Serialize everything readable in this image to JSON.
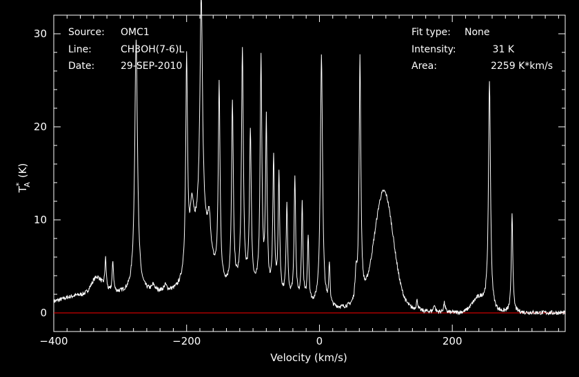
{
  "chart_data": {
    "type": "line",
    "xlabel": "Velocity (km/s)",
    "ylabel_main": "T",
    "ylabel_sub": "A",
    "ylabel_sup": "*",
    "ylabel_unit": "(K)",
    "xlim": [
      -400,
      370
    ],
    "ylim": [
      -2,
      32
    ],
    "x_ticks": [
      -400,
      -200,
      0,
      200
    ],
    "y_ticks": [
      0,
      10,
      20,
      30
    ],
    "baseline_y": 0,
    "baseline_color": "#ff0000",
    "line_color": "#ffffff",
    "grid": false,
    "info_left": [
      {
        "label": "Source:",
        "value": "OMC1"
      },
      {
        "label": "Line:",
        "value": "CH3OH(7-6)L"
      },
      {
        "label": "Date:",
        "value": "29-SEP-2010"
      }
    ],
    "info_right": [
      {
        "label": "Fit type:",
        "value": "None"
      },
      {
        "label": "Intensity:",
        "value": "31 K"
      },
      {
        "label": "Area:",
        "value": "2259 K*km/s"
      }
    ],
    "series": [
      {
        "broad": [
          [
            -335,
            1.8,
            8
          ],
          [
            -295,
            2.0,
            100
          ],
          [
            -180,
            5.5,
            14
          ],
          [
            -120,
            2.0,
            70
          ],
          [
            97,
            12.0,
            14
          ],
          [
            92,
            1.0,
            35
          ],
          [
            240,
            1.5,
            10
          ],
          [
            -365,
            0.3,
            20
          ]
        ],
        "peaks": [
          [
            -322,
            3.3,
            1.3
          ],
          [
            -311,
            3.3,
            1.3
          ],
          [
            -276,
            27.2,
            2.5
          ],
          [
            -250,
            0.6,
            2.5
          ],
          [
            -232,
            0.6,
            2.5
          ],
          [
            -200,
            22.5,
            1.6
          ],
          [
            -192,
            5.0,
            3.5
          ],
          [
            -178,
            25.5,
            2.4
          ],
          [
            -166,
            4.0,
            3.0
          ],
          [
            -151,
            21.0,
            1.6
          ],
          [
            -131,
            19.6,
            1.6
          ],
          [
            -116,
            25.3,
            1.7
          ],
          [
            -104,
            16.8,
            1.6
          ],
          [
            -88,
            24.8,
            1.6
          ],
          [
            -80,
            18.0,
            1.4
          ],
          [
            -69,
            14.6,
            1.4
          ],
          [
            -61,
            12.7,
            1.4
          ],
          [
            -49,
            10.0,
            1.4
          ],
          [
            -37,
            13.0,
            1.4
          ],
          [
            -26,
            10.5,
            1.3
          ],
          [
            -17,
            7.2,
            1.3
          ],
          [
            3,
            27.0,
            2.0
          ],
          [
            15,
            4.4,
            1.1
          ],
          [
            55,
            3.0,
            1.5
          ],
          [
            61,
            26.3,
            1.6
          ],
          [
            147,
            1.0,
            1.5
          ],
          [
            173,
            0.8,
            1.5
          ],
          [
            188,
            1.0,
            1.5
          ],
          [
            256,
            24.6,
            1.8
          ],
          [
            290,
            10.8,
            1.3
          ]
        ]
      }
    ]
  }
}
